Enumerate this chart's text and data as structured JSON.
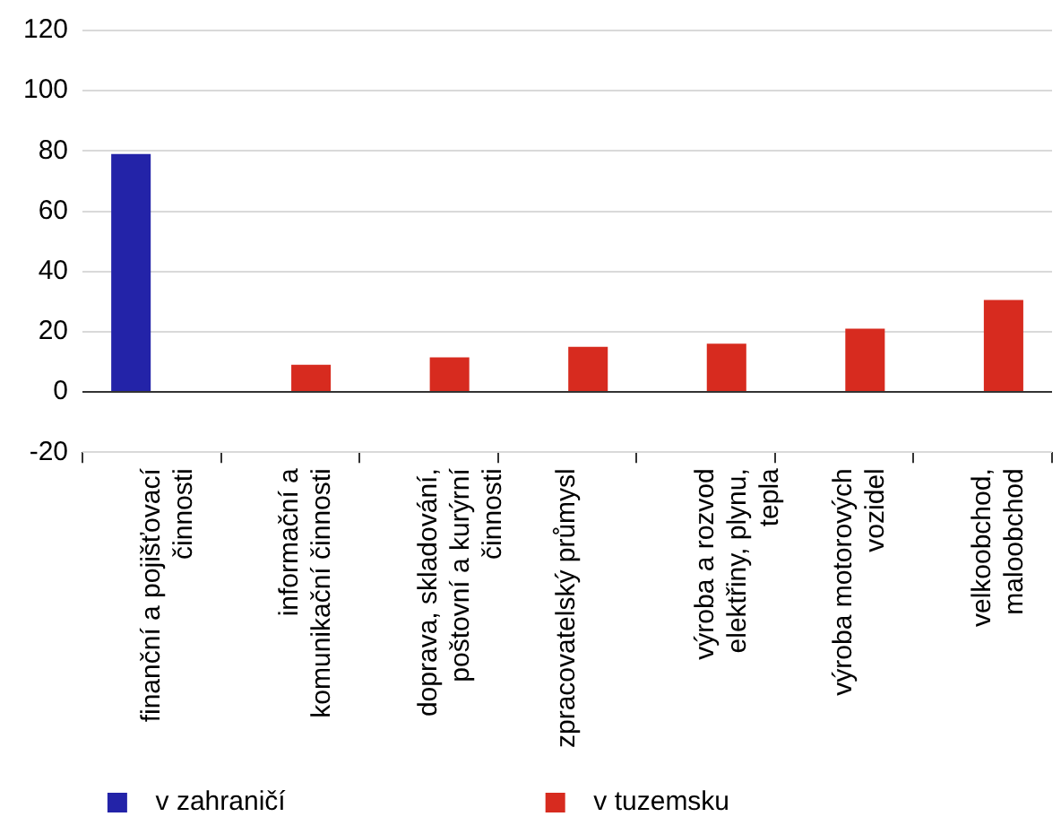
{
  "chart_data": {
    "type": "bar",
    "categories": [
      "finanční a pojišťovací činnosti",
      "informační a komunikační činnosti",
      "doprava, skladování, poštovní a kurýrní činnosti",
      "zpracovatelský průmysl",
      "výroba a rozvod elektřiny, plynu, tepla",
      "výroba motorových vozidel",
      "velkoobchod, maloobchod"
    ],
    "series": [
      {
        "name": "v zahraničí",
        "color": "#2323a8",
        "values": [
          79,
          null,
          null,
          null,
          null,
          null,
          null
        ]
      },
      {
        "name": "v tuzemsku",
        "color": "#d72b1f",
        "values": [
          null,
          9,
          11.5,
          15,
          16,
          21,
          30.5
        ]
      }
    ],
    "ylim": [
      -20,
      120
    ],
    "yticks": [
      -20,
      0,
      20,
      40,
      60,
      80,
      100,
      120
    ],
    "grid": "y",
    "legend": "bottom"
  }
}
